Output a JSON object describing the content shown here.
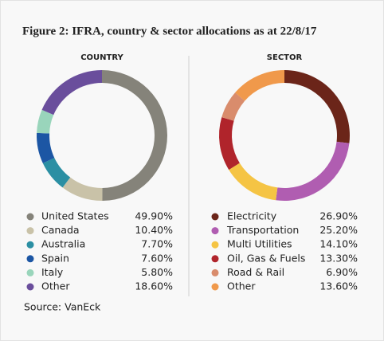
{
  "title": "Figure 2: IFRA, country & sector allocations as at 22/8/17",
  "source": "Source: VanEck",
  "chart_data": [
    {
      "type": "pie",
      "title": "COUNTRY",
      "categories": [
        "United States",
        "Canada",
        "Australia",
        "Spain",
        "Italy",
        "Other"
      ],
      "values": [
        49.9,
        10.4,
        7.7,
        7.6,
        5.8,
        18.6
      ],
      "value_labels": [
        "49.90%",
        "10.40%",
        "7.70%",
        "7.60%",
        "5.80%",
        "18.60%"
      ],
      "colors": [
        "#85837a",
        "#c9c2a8",
        "#2b8fa3",
        "#1c56a4",
        "#99d5bb",
        "#6a4e9c"
      ]
    },
    {
      "type": "pie",
      "title": "SECTOR",
      "categories": [
        "Electricity",
        "Transportation",
        "Multi Utilities",
        "Oil, Gas & Fuels",
        "Road & Rail",
        "Other"
      ],
      "values": [
        26.9,
        25.2,
        14.1,
        13.3,
        6.9,
        13.6
      ],
      "value_labels": [
        "26.90%",
        "25.20%",
        "14.10%",
        "13.30%",
        "6.90%",
        "13.60%"
      ],
      "colors": [
        "#6b2519",
        "#b05db1",
        "#f5c444",
        "#b0242b",
        "#d98c6c",
        "#f0994b"
      ]
    }
  ]
}
